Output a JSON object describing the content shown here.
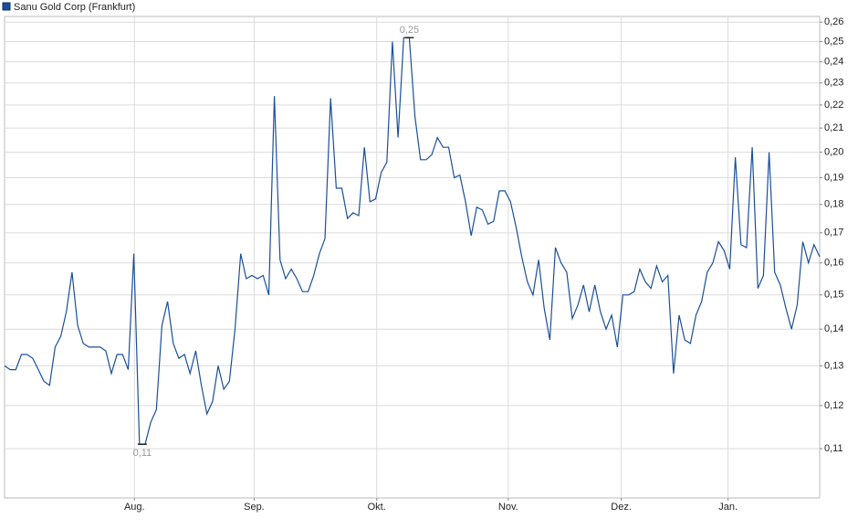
{
  "chart_data": {
    "type": "line",
    "log_scale_y": true,
    "grid": true,
    "series": [
      {
        "name": "Sanu Gold Corp (Frankfurt)",
        "color": "#1a4f9a",
        "values": [
          0.13,
          0.129,
          0.129,
          0.133,
          0.133,
          0.132,
          0.129,
          0.126,
          0.125,
          0.135,
          0.138,
          0.145,
          0.157,
          0.141,
          0.136,
          0.135,
          0.135,
          0.135,
          0.134,
          0.128,
          0.133,
          0.133,
          0.129,
          0.163,
          0.111,
          0.111,
          0.116,
          0.119,
          0.141,
          0.148,
          0.136,
          0.132,
          0.133,
          0.128,
          0.134,
          0.125,
          0.118,
          0.121,
          0.13,
          0.124,
          0.126,
          0.14,
          0.163,
          0.155,
          0.156,
          0.155,
          0.156,
          0.15,
          0.224,
          0.161,
          0.155,
          0.158,
          0.155,
          0.151,
          0.151,
          0.156,
          0.163,
          0.168,
          0.223,
          0.186,
          0.186,
          0.175,
          0.177,
          0.176,
          0.202,
          0.181,
          0.182,
          0.192,
          0.196,
          0.25,
          0.206,
          0.252,
          0.252,
          0.215,
          0.197,
          0.197,
          0.199,
          0.206,
          0.202,
          0.202,
          0.19,
          0.191,
          0.181,
          0.169,
          0.179,
          0.178,
          0.173,
          0.174,
          0.185,
          0.185,
          0.181,
          0.172,
          0.162,
          0.154,
          0.15,
          0.161,
          0.146,
          0.137,
          0.165,
          0.16,
          0.157,
          0.143,
          0.147,
          0.153,
          0.145,
          0.153,
          0.145,
          0.14,
          0.144,
          0.135,
          0.15,
          0.15,
          0.151,
          0.158,
          0.154,
          0.152,
          0.159,
          0.154,
          0.156,
          0.128,
          0.144,
          0.137,
          0.136,
          0.144,
          0.148,
          0.157,
          0.16,
          0.167,
          0.164,
          0.158,
          0.198,
          0.166,
          0.165,
          0.202,
          0.152,
          0.156,
          0.2,
          0.157,
          0.153,
          0.146,
          0.14,
          0.147,
          0.167,
          0.16,
          0.166,
          0.162
        ]
      }
    ],
    "xlim": [
      0,
      145
    ],
    "xticks": [
      {
        "value": 23.1,
        "label": "Aug."
      },
      {
        "value": 44.4,
        "label": "Sep."
      },
      {
        "value": 66.2,
        "label": "Okt."
      },
      {
        "value": 89.6,
        "label": "Nov."
      },
      {
        "value": 109.7,
        "label": "Dez."
      },
      {
        "value": 128.7,
        "label": "Jan."
      }
    ],
    "ylim": [
      0.0996,
      0.263
    ],
    "yticks": [
      {
        "value": 0.11,
        "label": "0,11"
      },
      {
        "value": 0.12,
        "label": "0,12"
      },
      {
        "value": 0.13,
        "label": "0,13"
      },
      {
        "value": 0.14,
        "label": "0,14"
      },
      {
        "value": 0.15,
        "label": "0,15"
      },
      {
        "value": 0.16,
        "label": "0,16"
      },
      {
        "value": 0.17,
        "label": "0,17"
      },
      {
        "value": 0.18,
        "label": "0,18"
      },
      {
        "value": 0.19,
        "label": "0,19"
      },
      {
        "value": 0.2,
        "label": "0,20"
      },
      {
        "value": 0.21,
        "label": "0,21"
      },
      {
        "value": 0.22,
        "label": "0,22"
      },
      {
        "value": 0.23,
        "label": "0,23"
      },
      {
        "value": 0.24,
        "label": "0,24"
      },
      {
        "value": 0.25,
        "label": "0,25"
      },
      {
        "value": 0.26,
        "label": "0,26"
      }
    ],
    "annotations": [
      {
        "text": "0,25",
        "x": 72,
        "value": 0.252
      },
      {
        "text": "0,11",
        "x": 24.5,
        "value": 0.111
      }
    ]
  }
}
